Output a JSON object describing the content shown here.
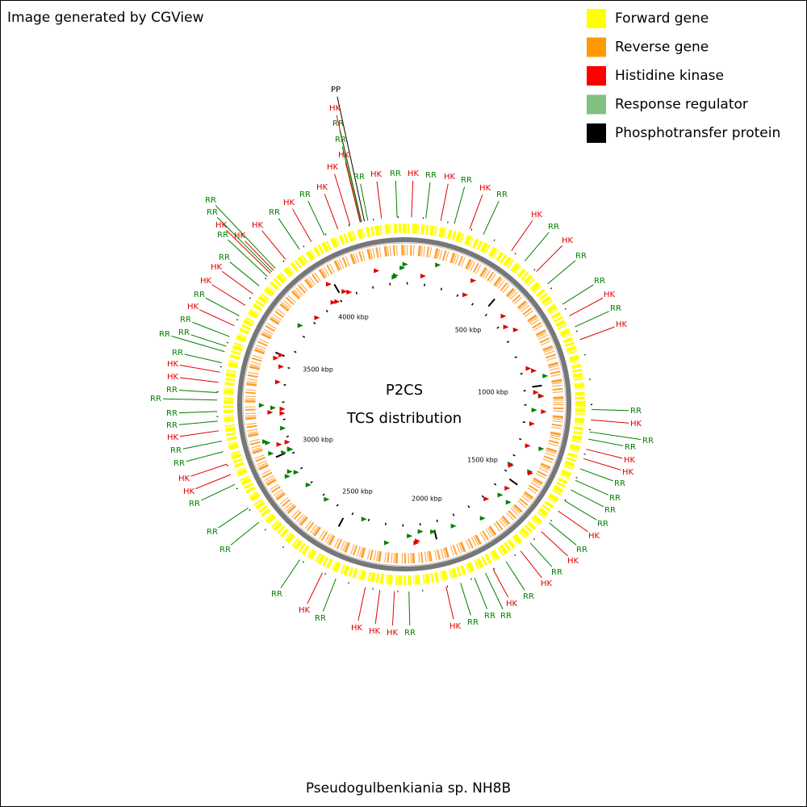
{
  "header": {
    "title": "Image generated by CGView"
  },
  "legend": [
    {
      "label": "Forward gene",
      "color": "#ffff00"
    },
    {
      "label": "Reverse gene",
      "color": "#ff9900"
    },
    {
      "label": "Histidine kinase",
      "color": "#ff0000"
    },
    {
      "label": "Response regulator",
      "color": "#80c080"
    },
    {
      "label": "Phosphotransfer protein",
      "color": "#000000"
    }
  ],
  "center": {
    "title": "P2CS",
    "subtitle": "TCS distribution"
  },
  "scale_labels": [
    "500 kbp",
    "1000 kbp",
    "1500 kbp",
    "2000 kbp",
    "2500 kbp",
    "3000 kbp",
    "3500 kbp",
    "4000 kbp"
  ],
  "feature_colors": {
    "HK": "#e00000",
    "RR": "#008000",
    "PP": "#000000"
  },
  "features": [
    "PP",
    "HK",
    "RR",
    "RR",
    "HK",
    "HK",
    "RR",
    "HK",
    "RR",
    "HK",
    "RR",
    "HK",
    "RR",
    "HK",
    "RR",
    "HK",
    "RR",
    "HK",
    "RR",
    "RR",
    "HK",
    "RR",
    "HK",
    "RR",
    "HK",
    "RR",
    "RR",
    "HK",
    "HK",
    "RR",
    "RR",
    "RR",
    "RR",
    "HK",
    "RR",
    "HK",
    "RR",
    "HK",
    "RR",
    "HK",
    "RR",
    "RR",
    "RR",
    "HK",
    "RR",
    "HK",
    "HK",
    "HK",
    "RR",
    "HK",
    "RR",
    "RR",
    "RR",
    "RR",
    "HK",
    "HK",
    "RR",
    "RR",
    "HK",
    "RR",
    "RR",
    "RR",
    "RR",
    "HK",
    "HK",
    "RR",
    "RR",
    "RR",
    "RR",
    "HK",
    "RR",
    "HK",
    "HK",
    "RR",
    "RR",
    "RR",
    "HK",
    "RR",
    "HK",
    "HK",
    "RR",
    "HK",
    "RR",
    "HK"
  ],
  "footer": "Pseudogulbenkiania sp. NH8B"
}
